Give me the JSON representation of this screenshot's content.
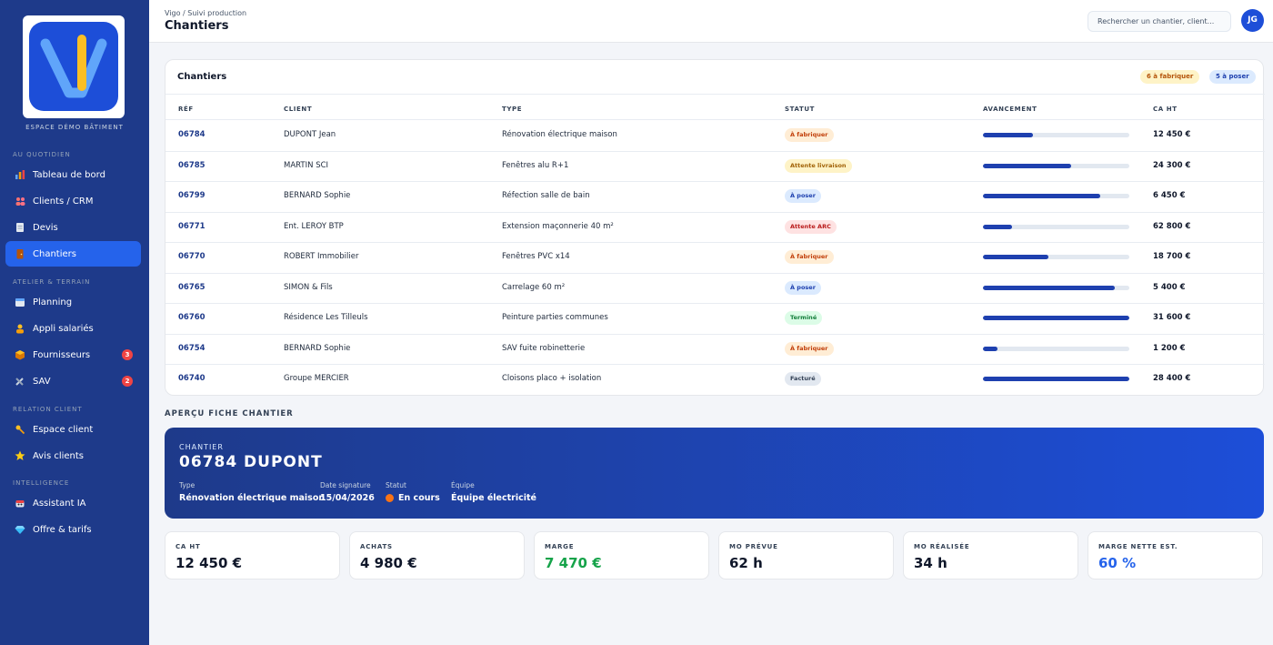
{
  "app": {
    "logo_letter": "V",
    "space": "ESPACE DÉMO BÂTIMENT"
  },
  "sidebar": {
    "sections": [
      {
        "title": "AU QUOTIDIEN"
      },
      {
        "title": "ATELIER & TERRAIN"
      },
      {
        "title": "RELATION CLIENT"
      },
      {
        "title": "INTELLIGENCE"
      }
    ],
    "items": [
      {
        "label": "Tableau de bord",
        "icon": "chart-icon"
      },
      {
        "label": "Clients / CRM",
        "icon": "people-icon"
      },
      {
        "label": "Devis",
        "icon": "document-icon"
      },
      {
        "label": "Chantiers",
        "icon": "door-icon",
        "active": true
      },
      {
        "label": "Planning",
        "icon": "calendar-icon"
      },
      {
        "label": "Appli salariés",
        "icon": "worker-icon"
      },
      {
        "label": "Fournisseurs",
        "icon": "box-icon",
        "badge": "3"
      },
      {
        "label": "SAV",
        "icon": "tools-icon",
        "badge": "2"
      },
      {
        "label": "Espace client",
        "icon": "key-icon"
      },
      {
        "label": "Avis clients",
        "icon": "star-icon"
      },
      {
        "label": "Assistant IA",
        "icon": "robot-icon"
      },
      {
        "label": "Offre & tarifs",
        "icon": "diamond-icon"
      }
    ]
  },
  "header": {
    "breadcrumb": "Vigo / Suivi production",
    "title": "Chantiers",
    "search_placeholder": "Rechercher un chantier, client...",
    "avatar_initials": "JG"
  },
  "table": {
    "title": "Chantiers",
    "chips": {
      "to_make": "6 à fabriquer",
      "to_install": "5 à poser"
    },
    "columns": {
      "ref": "RÉF",
      "client": "CLIENT",
      "type": "TYPE",
      "status": "STATUT",
      "progress": "AVANCEMENT",
      "amount": "CA HT"
    },
    "rows": [
      {
        "ref": "06784",
        "client": "DUPONT Jean",
        "type": "Rénovation électrique maison",
        "status": "À fabriquer",
        "status_kind": "fab",
        "progress": 0.34,
        "amount": "12 450 €"
      },
      {
        "ref": "06785",
        "client": "MARTIN SCI",
        "type": "Fenêtres alu R+1",
        "status": "Attente livraison",
        "status_kind": "liv",
        "progress": 0.6,
        "amount": "24 300 €"
      },
      {
        "ref": "06799",
        "client": "BERNARD Sophie",
        "type": "Réfection salle de bain",
        "status": "À poser",
        "status_kind": "pos",
        "progress": 0.8,
        "amount": "6 450 €"
      },
      {
        "ref": "06771",
        "client": "Ent. LEROY BTP",
        "type": "Extension maçonnerie 40 m²",
        "status": "Attente ARC",
        "status_kind": "arc",
        "progress": 0.2,
        "amount": "62 800 €"
      },
      {
        "ref": "06770",
        "client": "ROBERT Immobilier",
        "type": "Fenêtres PVC x14",
        "status": "À fabriquer",
        "status_kind": "fab",
        "progress": 0.45,
        "amount": "18 700 €"
      },
      {
        "ref": "06765",
        "client": "SIMON & Fils",
        "type": "Carrelage 60 m²",
        "status": "À poser",
        "status_kind": "pos",
        "progress": 0.9,
        "amount": "5 400 €"
      },
      {
        "ref": "06760",
        "client": "Résidence Les Tilleuls",
        "type": "Peinture parties communes",
        "status": "Terminé",
        "status_kind": "term",
        "progress": 1.0,
        "amount": "31 600 €"
      },
      {
        "ref": "06754",
        "client": "BERNARD Sophie",
        "type": "SAV fuite robinetterie",
        "status": "À fabriquer",
        "status_kind": "fab",
        "progress": 0.1,
        "amount": "1 200 €"
      },
      {
        "ref": "06740",
        "client": "Groupe MERCIER",
        "type": "Cloisons placo + isolation",
        "status": "Facturé",
        "status_kind": "fact",
        "progress": 1.0,
        "amount": "28 400 €"
      }
    ]
  },
  "preview": {
    "section_title": "APERÇU FICHE CHANTIER",
    "kicker": "CHANTIER",
    "title": "06784 DUPONT",
    "fields": [
      {
        "label": "Type",
        "value": "Rénovation électrique maison"
      },
      {
        "label": "Date signature",
        "value": "15/04/2026"
      },
      {
        "label": "Statut",
        "value": "En cours"
      },
      {
        "label": "Équipe",
        "value": "Équipe électricité"
      }
    ],
    "kpis": [
      {
        "label": "CA HT",
        "value": "12 450 €"
      },
      {
        "label": "ACHATS",
        "value": "4 980 €"
      },
      {
        "label": "MARGE",
        "value": "7 470 €"
      },
      {
        "label": "MO PRÉVUE",
        "value": "62 h"
      },
      {
        "label": "MO RÉALISÉE",
        "value": "34 h"
      },
      {
        "label": "MARGE NETTE EST.",
        "value": "60 %"
      }
    ]
  },
  "colors": {
    "sidebar": "#1e3a8a",
    "accent": "#2563eb",
    "logo_bar": "#fbbf24"
  }
}
